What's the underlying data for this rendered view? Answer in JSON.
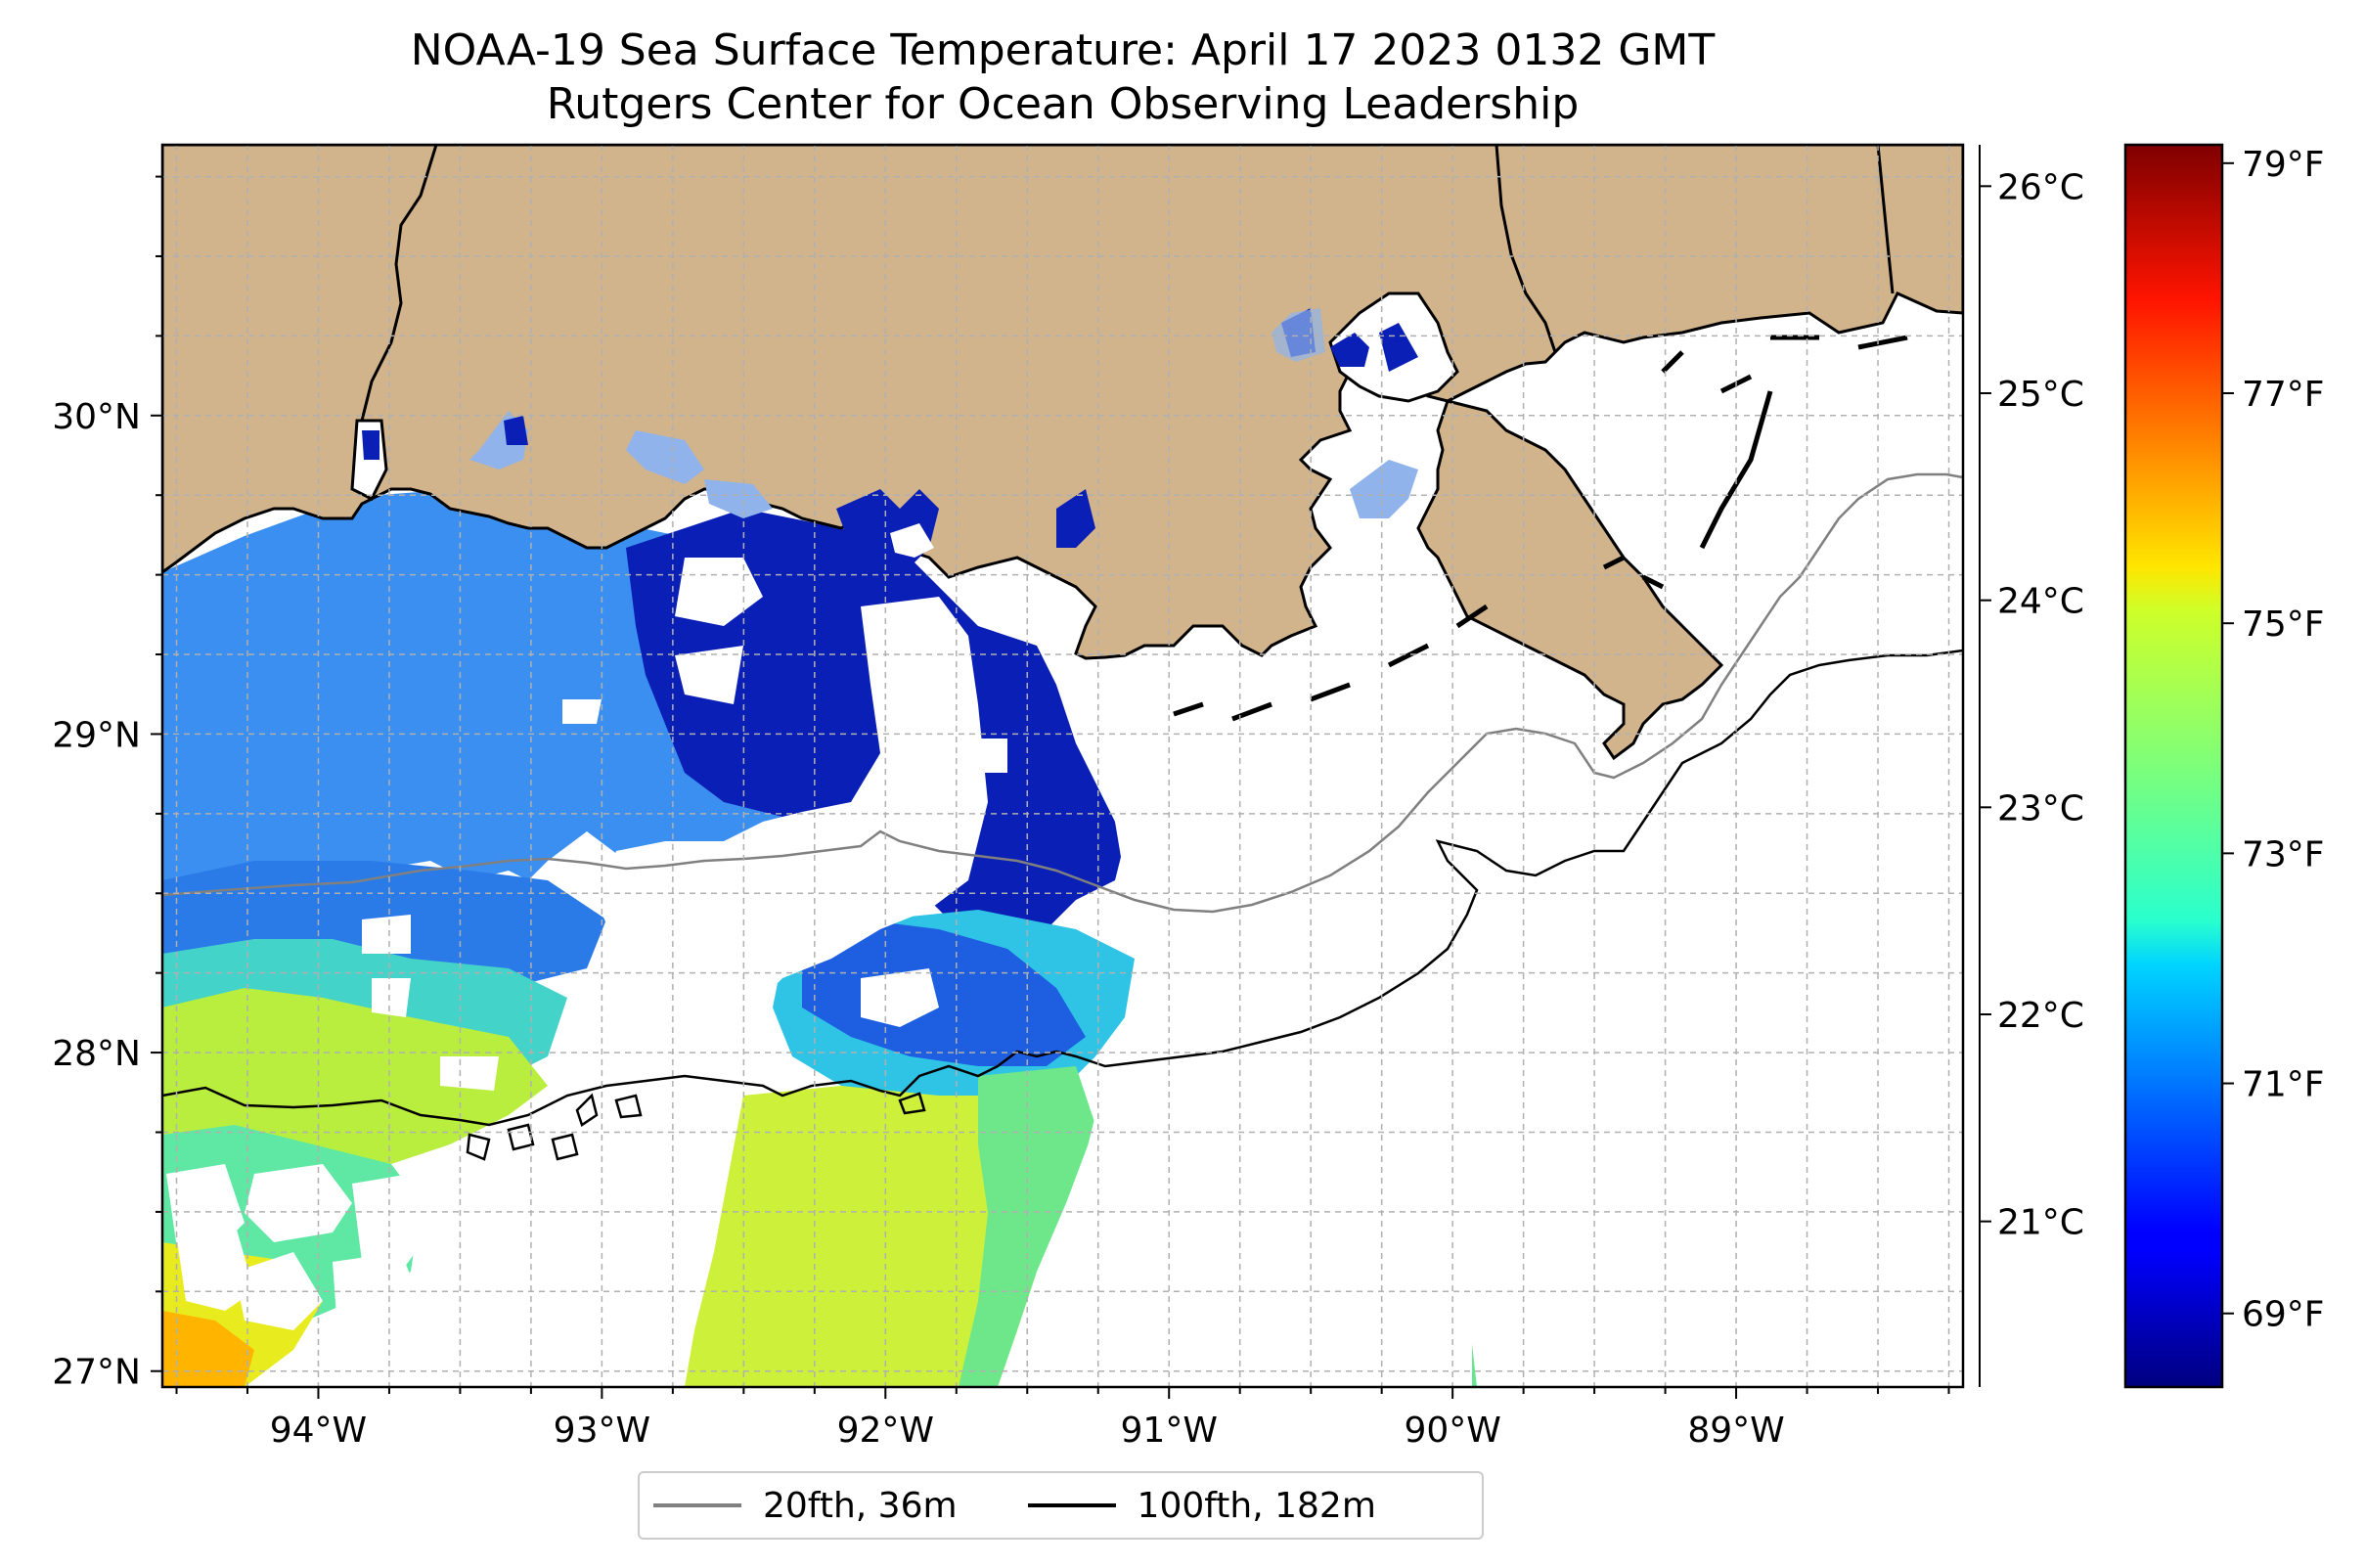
{
  "title": {
    "line1": "NOAA-19 Sea Surface Temperature: April 17 2023 0132 GMT",
    "line2": "Rutgers Center for Ocean Observing Leadership"
  },
  "map": {
    "region": "Northern Gulf of Mexico, Louisiana coast",
    "lon_range": [
      -94.55,
      -88.2
    ],
    "lat_range": [
      26.95,
      30.85
    ],
    "lat_ticks": [
      {
        "value": 30,
        "label": "30°N"
      },
      {
        "value": 29,
        "label": "29°N"
      },
      {
        "value": 28,
        "label": "28°N"
      },
      {
        "value": 27,
        "label": "27°N"
      }
    ],
    "lon_ticks": [
      {
        "value": -94,
        "label": "94°W"
      },
      {
        "value": -93,
        "label": "93°W"
      },
      {
        "value": -92,
        "label": "92°W"
      },
      {
        "value": -91,
        "label": "91°W"
      },
      {
        "value": -90,
        "label": "90°W"
      },
      {
        "value": -89,
        "label": "89°W"
      }
    ],
    "gridlines": true,
    "land_color": "#d2b48c",
    "no_data_color": "#ffffff"
  },
  "colorbar": {
    "colormap": "jet",
    "range_c": [
      20.2,
      26.2
    ],
    "celsius_ticks": [
      {
        "value": 26,
        "label": "26°C"
      },
      {
        "value": 25,
        "label": "25°C"
      },
      {
        "value": 24,
        "label": "24°C"
      },
      {
        "value": 23,
        "label": "23°C"
      },
      {
        "value": 22,
        "label": "22°C"
      },
      {
        "value": 21,
        "label": "21°C"
      }
    ],
    "fahrenheit_ticks": [
      {
        "value": 79,
        "label": "79°F"
      },
      {
        "value": 77,
        "label": "77°F"
      },
      {
        "value": 75,
        "label": "75°F"
      },
      {
        "value": 73,
        "label": "73°F"
      },
      {
        "value": 71,
        "label": "71°F"
      },
      {
        "value": 69,
        "label": "69°F"
      }
    ]
  },
  "legend": {
    "items": [
      {
        "label": "20fth, 36m",
        "color": "#808080"
      },
      {
        "label": "100fth, 182m",
        "color": "#000000"
      }
    ],
    "placement": "bottom-center"
  }
}
